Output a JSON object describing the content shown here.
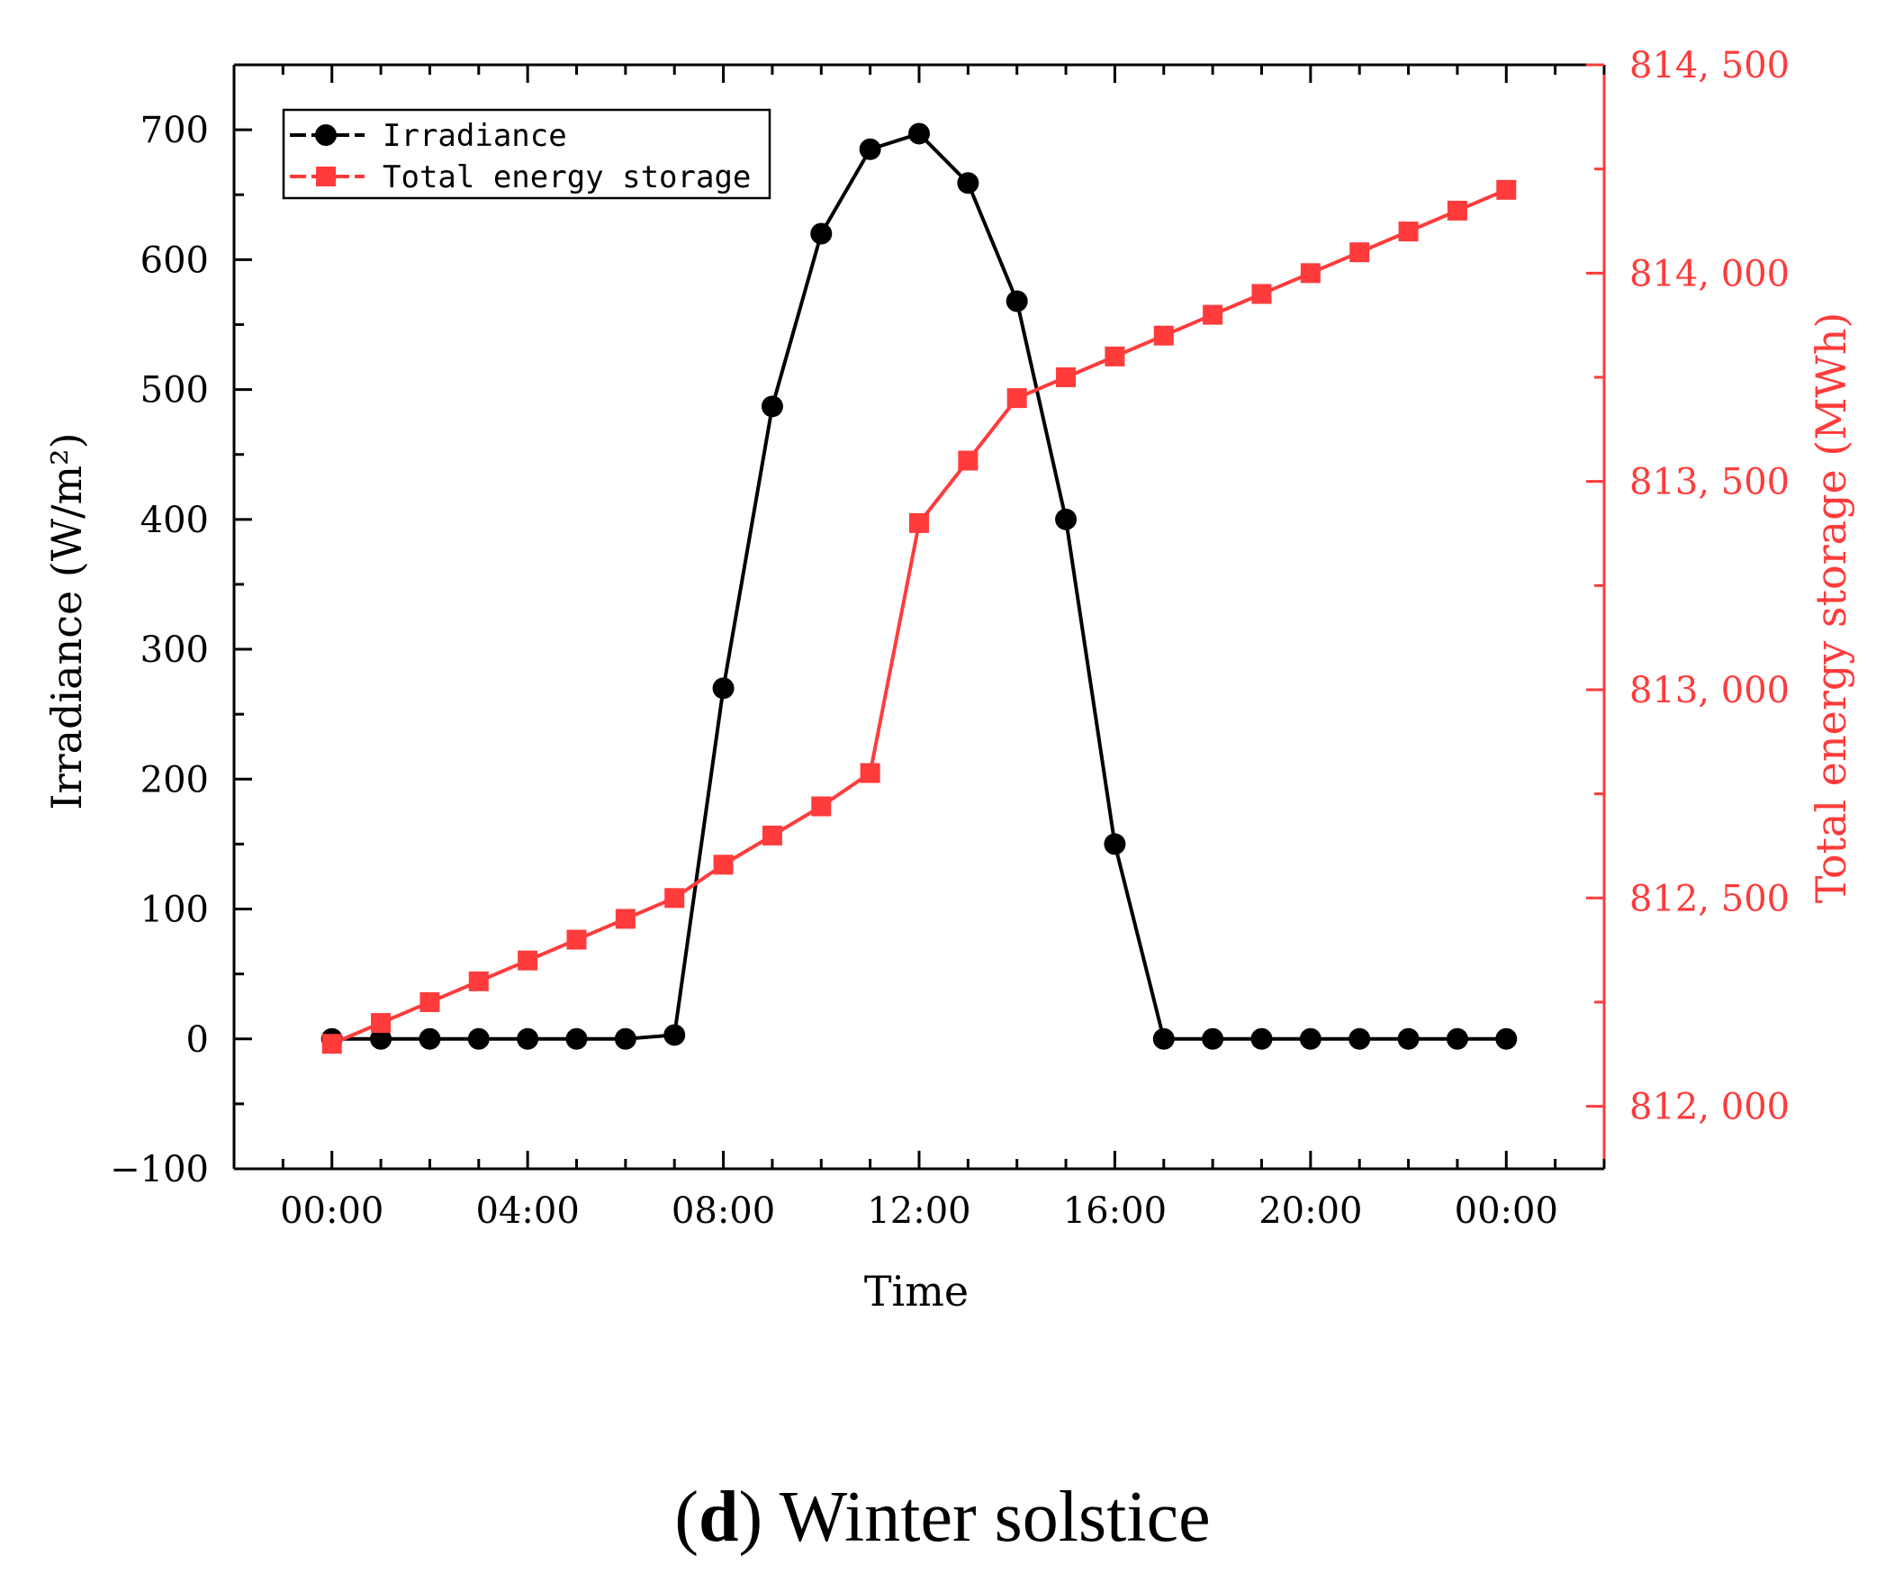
{
  "caption": {
    "letter": "d",
    "text": "Winter solstice"
  },
  "chart_data": {
    "type": "line",
    "xlabel": "Time",
    "ylabel": "Irradiance (W/m²)",
    "y2label": "Total energy storage (MWh)",
    "x_tick_labels": [
      "00:00",
      "04:00",
      "08:00",
      "12:00",
      "16:00",
      "20:00",
      "00:00"
    ],
    "x_hours": [
      0,
      1,
      2,
      3,
      4,
      5,
      6,
      7,
      8,
      9,
      10,
      11,
      12,
      13,
      14,
      15,
      16,
      17,
      18,
      19,
      20,
      21,
      22,
      23,
      24
    ],
    "xlim_hours": [
      -2,
      26
    ],
    "ylim": [
      -100,
      750
    ],
    "y_ticks": [
      -100,
      0,
      100,
      200,
      300,
      400,
      500,
      600,
      700
    ],
    "y2lim": [
      811850,
      814500
    ],
    "y2_ticks": [
      812000,
      812500,
      813000,
      813500,
      814000,
      814500
    ],
    "y2_tick_labels": [
      "812, 000",
      "812, 500",
      "813, 000",
      "813, 500",
      "814, 000",
      "814, 500"
    ],
    "legend_position": "top-left",
    "grid": false,
    "series": [
      {
        "name": "Irradiance",
        "axis": "left",
        "color": "#000000",
        "marker": "circle",
        "values": [
          0,
          0,
          0,
          0,
          0,
          0,
          0,
          3,
          270,
          487,
          620,
          685,
          697,
          659,
          568,
          400,
          150,
          0,
          0,
          0,
          0,
          0,
          0,
          0,
          0
        ]
      },
      {
        "name": "Total energy storage",
        "axis": "right",
        "color": "#ff3b3b",
        "marker": "square",
        "values": [
          812150,
          812200,
          812250,
          812300,
          812350,
          812400,
          812450,
          812500,
          812580,
          812650,
          812720,
          812800,
          813400,
          813550,
          813700,
          813750,
          813800,
          813850,
          813900,
          813950,
          814000,
          814050,
          814100,
          814150,
          814200
        ]
      }
    ]
  }
}
